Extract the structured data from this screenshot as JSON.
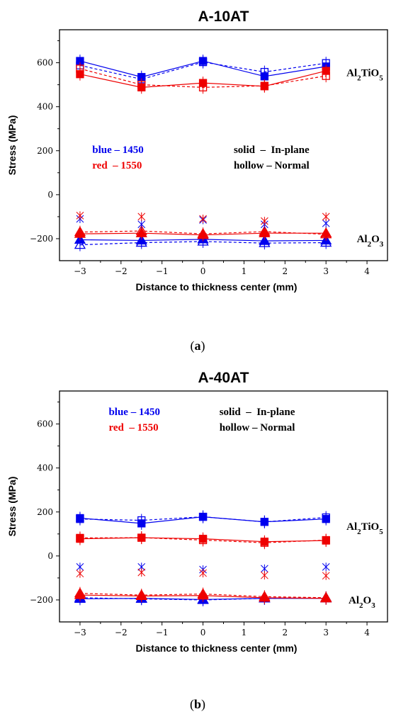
{
  "chart_data": [
    {
      "type": "line",
      "panel_label": "(a)",
      "title": "A-10AT",
      "xlabel": "Distance to thickness center (mm)",
      "ylabel": "Stress (MPa)",
      "xlim": [
        -3.5,
        4.5
      ],
      "ylim": [
        -300,
        750
      ],
      "xticks": [
        -3,
        -2,
        -1,
        0,
        1,
        2,
        3,
        4
      ],
      "yticks": [
        -200,
        0,
        200,
        400,
        600
      ],
      "legend_text": {
        "blue": "blue – 1450",
        "red": "red  – 1550",
        "solid": "solid  –  In-plane",
        "hollow": "hollow – Normal"
      },
      "component_labels": [
        "Al2TiO5",
        "Al2O3"
      ],
      "x": [
        -3,
        -1.5,
        0,
        1.5,
        3
      ],
      "series": [
        {
          "phase": "Al2TiO5",
          "color": "blue",
          "fill": "solid",
          "marker": "square",
          "values": [
            608,
            535,
            608,
            538,
            583
          ]
        },
        {
          "phase": "Al2TiO5",
          "color": "blue",
          "fill": "hollow",
          "marker": "square",
          "values": [
            588,
            525,
            603,
            558,
            598
          ]
        },
        {
          "phase": "Al2TiO5",
          "color": "red",
          "fill": "solid",
          "marker": "square",
          "values": [
            548,
            488,
            508,
            493,
            563
          ]
        },
        {
          "phase": "Al2TiO5",
          "color": "red",
          "fill": "hollow",
          "marker": "square",
          "values": [
            573,
            500,
            488,
            495,
            540
          ]
        },
        {
          "phase": "Al2O3",
          "color": "blue",
          "fill": "solid",
          "marker": "triangle",
          "values": [
            -205,
            -208,
            -203,
            -210,
            -208
          ]
        },
        {
          "phase": "Al2O3",
          "color": "blue",
          "fill": "hollow",
          "marker": "triangle",
          "values": [
            -228,
            -218,
            -213,
            -220,
            -218
          ]
        },
        {
          "phase": "Al2O3",
          "color": "red",
          "fill": "solid",
          "marker": "triangle",
          "values": [
            -178,
            -175,
            -183,
            -175,
            -175
          ]
        },
        {
          "phase": "Al2O3",
          "color": "red",
          "fill": "hollow",
          "marker": "triangle",
          "values": [
            -170,
            -165,
            -178,
            -168,
            -180
          ]
        },
        {
          "phase": "Al2O3",
          "color": "blue",
          "fill": "none",
          "marker": "star",
          "values": [
            -110,
            -135,
            -115,
            -135,
            -130
          ]
        },
        {
          "phase": "Al2O3",
          "color": "red",
          "fill": "none",
          "marker": "star",
          "values": [
            -95,
            -100,
            -110,
            -120,
            -100
          ]
        }
      ]
    },
    {
      "type": "line",
      "panel_label": "(b)",
      "title": "A-40AT",
      "xlabel": "Distance to thickness center (mm)",
      "ylabel": "Stress (MPa)",
      "xlim": [
        -3.5,
        4.5
      ],
      "ylim": [
        -300,
        750
      ],
      "xticks": [
        -3,
        -2,
        -1,
        0,
        1,
        2,
        3,
        4
      ],
      "yticks": [
        -200,
        0,
        200,
        400,
        600
      ],
      "legend_text": {
        "blue": "blue – 1450",
        "red": "red  – 1550",
        "solid": "solid  –  In-plane",
        "hollow": "hollow – Normal"
      },
      "component_labels": [
        "Al2TiO5",
        "Al2O3"
      ],
      "x": [
        -3,
        -1.5,
        0,
        1.5,
        3
      ],
      "series": [
        {
          "phase": "Al2TiO5",
          "color": "blue",
          "fill": "solid",
          "marker": "square",
          "values": [
            172,
            148,
            178,
            155,
            168
          ]
        },
        {
          "phase": "Al2TiO5",
          "color": "blue",
          "fill": "hollow",
          "marker": "square",
          "values": [
            168,
            162,
            178,
            155,
            175
          ]
        },
        {
          "phase": "Al2TiO5",
          "color": "red",
          "fill": "solid",
          "marker": "square",
          "values": [
            78,
            83,
            78,
            65,
            70
          ]
        },
        {
          "phase": "Al2TiO5",
          "color": "red",
          "fill": "hollow",
          "marker": "square",
          "values": [
            82,
            83,
            72,
            60,
            72
          ]
        },
        {
          "phase": "Al2O3",
          "color": "blue",
          "fill": "solid",
          "marker": "triangle",
          "values": [
            -195,
            -193,
            -198,
            -193,
            -193
          ]
        },
        {
          "phase": "Al2O3",
          "color": "blue",
          "fill": "hollow",
          "marker": "triangle",
          "values": [
            -190,
            -195,
            -200,
            -193,
            -190
          ]
        },
        {
          "phase": "Al2O3",
          "color": "red",
          "fill": "solid",
          "marker": "triangle",
          "values": [
            -178,
            -182,
            -180,
            -190,
            -193
          ]
        },
        {
          "phase": "Al2O3",
          "color": "red",
          "fill": "hollow",
          "marker": "triangle",
          "values": [
            -170,
            -178,
            -173,
            -185,
            -190
          ]
        },
        {
          "phase": "Al2O3",
          "color": "blue",
          "fill": "none",
          "marker": "star",
          "values": [
            -50,
            -50,
            -62,
            -58,
            -50
          ]
        },
        {
          "phase": "Al2O3",
          "color": "red",
          "fill": "none",
          "marker": "star",
          "values": [
            -80,
            -75,
            -78,
            -88,
            -90
          ]
        }
      ]
    }
  ],
  "colors": {
    "blue": "#0000ee",
    "red": "#ee0000"
  }
}
